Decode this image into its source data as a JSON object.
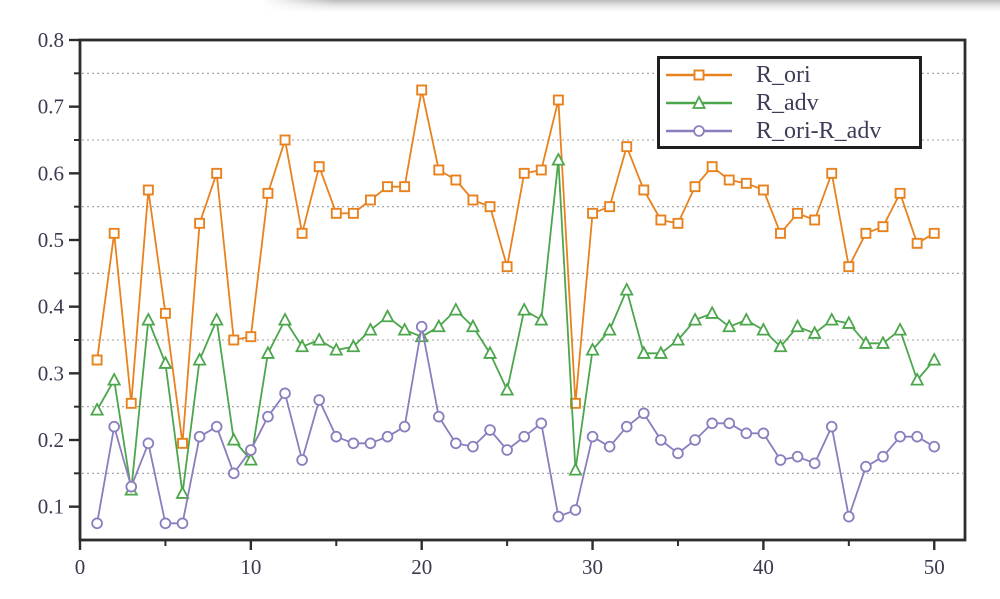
{
  "chart_data": {
    "type": "line",
    "title": "",
    "xlabel": "",
    "ylabel": "",
    "xlim": [
      0,
      51.8
    ],
    "ylim": [
      0.05,
      0.8
    ],
    "x_ticks": [
      0,
      10,
      20,
      30,
      40,
      50
    ],
    "x_tick_labels": [
      "0",
      "10",
      "20",
      "30",
      "40",
      "50"
    ],
    "x_minor_ticks": [
      5,
      15,
      25,
      35,
      45
    ],
    "y_ticks": [
      0.1,
      0.2,
      0.3,
      0.4,
      0.5,
      0.6,
      0.7,
      0.8
    ],
    "y_tick_labels": [
      "0.1",
      "0.2",
      "0.3",
      "0.4",
      "0.5",
      "0.6",
      "0.7",
      "0.8"
    ],
    "y_gridlines": [
      0.15,
      0.25,
      0.35,
      0.45,
      0.55,
      0.65,
      0.75
    ],
    "grid": "horizontal dashed at 0.x5 values",
    "legend_position": "top-right",
    "x": [
      1,
      2,
      3,
      4,
      5,
      6,
      7,
      8,
      9,
      10,
      11,
      12,
      13,
      14,
      15,
      16,
      17,
      18,
      19,
      20,
      21,
      22,
      23,
      24,
      25,
      26,
      27,
      28,
      29,
      30,
      31,
      32,
      33,
      34,
      35,
      36,
      37,
      38,
      39,
      40,
      41,
      42,
      43,
      44,
      45,
      46,
      47,
      48,
      49,
      50
    ],
    "series": [
      {
        "name": "R_ori",
        "marker": "square",
        "color": "#E8821E",
        "values": [
          0.32,
          0.51,
          0.255,
          0.575,
          0.39,
          0.195,
          0.525,
          0.6,
          0.35,
          0.355,
          0.57,
          0.65,
          0.51,
          0.61,
          0.54,
          0.54,
          0.56,
          0.58,
          0.58,
          0.725,
          0.605,
          0.59,
          0.56,
          0.55,
          0.46,
          0.6,
          0.605,
          0.71,
          0.255,
          0.54,
          0.55,
          0.64,
          0.575,
          0.53,
          0.525,
          0.58,
          0.61,
          0.59,
          0.585,
          0.575,
          0.51,
          0.54,
          0.53,
          0.6,
          0.46,
          0.51,
          0.52,
          0.57,
          0.495,
          0.51
        ]
      },
      {
        "name": "R_adv",
        "marker": "triangle",
        "color": "#4CA64C",
        "values": [
          0.245,
          0.29,
          0.125,
          0.38,
          0.315,
          0.12,
          0.32,
          0.38,
          0.2,
          0.17,
          0.33,
          0.38,
          0.34,
          0.35,
          0.335,
          0.34,
          0.365,
          0.385,
          0.365,
          0.355,
          0.37,
          0.395,
          0.37,
          0.33,
          0.275,
          0.395,
          0.38,
          0.62,
          0.155,
          0.335,
          0.365,
          0.425,
          0.33,
          0.33,
          0.35,
          0.38,
          0.39,
          0.37,
          0.38,
          0.365,
          0.34,
          0.37,
          0.36,
          0.38,
          0.375,
          0.345,
          0.345,
          0.365,
          0.29,
          0.32
        ]
      },
      {
        "name": "R_ori-R_adv",
        "marker": "circle",
        "color": "#8B7DBE",
        "values": [
          0.075,
          0.22,
          0.13,
          0.195,
          0.075,
          0.075,
          0.205,
          0.22,
          0.15,
          0.185,
          0.235,
          0.27,
          0.17,
          0.26,
          0.205,
          0.195,
          0.195,
          0.205,
          0.22,
          0.37,
          0.235,
          0.195,
          0.19,
          0.215,
          0.185,
          0.205,
          0.225,
          0.085,
          0.095,
          0.205,
          0.19,
          0.22,
          0.24,
          0.2,
          0.18,
          0.2,
          0.225,
          0.225,
          0.21,
          0.21,
          0.17,
          0.175,
          0.165,
          0.22,
          0.085,
          0.16,
          0.175,
          0.205,
          0.205,
          0.19
        ]
      }
    ],
    "colors": {
      "axis": "#2d2d2d",
      "grid": "#9e9e9e",
      "tick_label": "#3a3a50",
      "legend_border": "#1f1f1f",
      "legend_text": "#3c3c58",
      "background": "#ffffff"
    }
  }
}
